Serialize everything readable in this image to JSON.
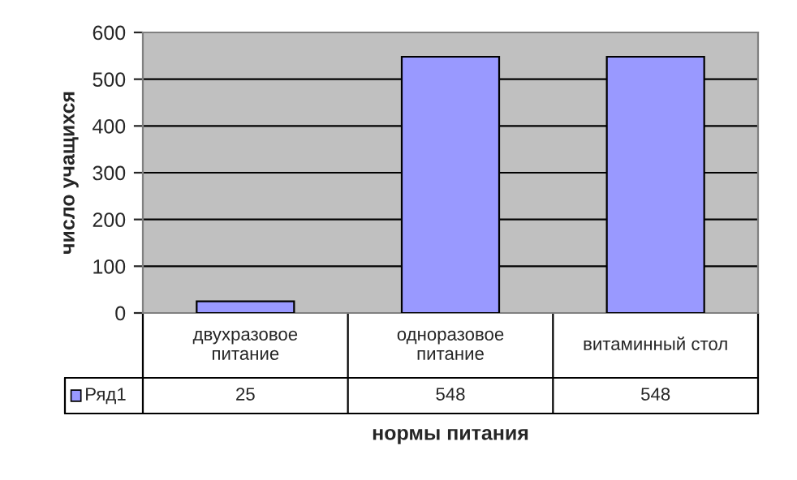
{
  "chart_data": {
    "type": "bar",
    "xlabel": "нормы питания",
    "ylabel": "число учащихся",
    "categories": [
      "двухразовое питание",
      "одноразовое питание",
      "витаминный стол"
    ],
    "series": [
      {
        "name": "Ряд1",
        "color": "#9999ff",
        "values": [
          25,
          548,
          548
        ]
      }
    ],
    "ylim": [
      0,
      600
    ],
    "yticks": [
      0,
      100,
      200,
      300,
      400,
      500,
      600
    ],
    "grid": "y",
    "data_labels": true,
    "legend": "bottom left"
  }
}
